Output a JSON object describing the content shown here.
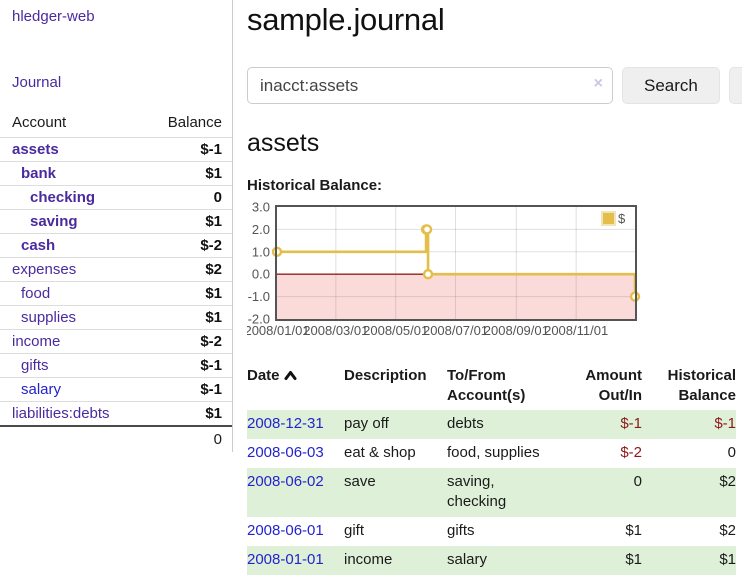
{
  "sidebar": {
    "brand": "hledger-web",
    "nav": {
      "journal": "Journal"
    },
    "accounts_table": {
      "col_account": "Account",
      "col_balance": "Balance",
      "rows": [
        {
          "name": "assets",
          "balance": "$-1",
          "level": 1,
          "bold": true,
          "balance_style": "neg-strong"
        },
        {
          "name": "bank",
          "balance": "$1",
          "level": 2,
          "bold": true,
          "balance_style": "normal"
        },
        {
          "name": "checking",
          "balance": "0",
          "level": 3,
          "bold": true,
          "balance_style": "normal"
        },
        {
          "name": "saving",
          "balance": "$1",
          "level": 3,
          "bold": true,
          "balance_style": "normal"
        },
        {
          "name": "cash",
          "balance": "$-2",
          "level": 2,
          "bold": true,
          "balance_style": "neg-strong"
        },
        {
          "name": "expenses",
          "balance": "$2",
          "level": 1,
          "bold": false,
          "balance_style": "normal"
        },
        {
          "name": "food",
          "balance": "$1",
          "level": 2,
          "bold": false,
          "balance_style": "normal"
        },
        {
          "name": "supplies",
          "balance": "$1",
          "level": 2,
          "bold": false,
          "balance_style": "normal"
        },
        {
          "name": "income",
          "balance": "$-2",
          "level": 1,
          "bold": false,
          "balance_style": "neg-soft"
        },
        {
          "name": "gifts",
          "balance": "$-1",
          "level": 2,
          "bold": false,
          "balance_style": "neg-soft"
        },
        {
          "name": "salary",
          "balance": "$-1",
          "level": 2,
          "bold": false,
          "balance_style": "neg-soft",
          "link_style": "blue"
        },
        {
          "name": "liabilities:debts",
          "balance": "$1",
          "level": 1,
          "bold": false,
          "balance_style": "normal"
        }
      ],
      "total": "0"
    }
  },
  "header": {
    "title": "sample.journal"
  },
  "search": {
    "value": "inacct:assets",
    "clear_icon": "×",
    "button": "Search",
    "help_button": "?"
  },
  "account_page": {
    "heading": "assets",
    "chart_label": "Historical Balance:"
  },
  "chart_data": {
    "type": "line",
    "title": "Historical Balance",
    "legend": [
      {
        "label": "$",
        "color": "#e4be49"
      }
    ],
    "x_range": [
      0,
      365
    ],
    "y_range": [
      -2,
      3
    ],
    "x_ticks": [
      {
        "pos": 0,
        "label": "2008/01/01"
      },
      {
        "pos": 60,
        "label": "2008/03/01"
      },
      {
        "pos": 121,
        "label": "2008/05/01"
      },
      {
        "pos": 182,
        "label": "2008/07/01"
      },
      {
        "pos": 244,
        "label": "2008/09/01"
      },
      {
        "pos": 305,
        "label": "2008/11/01"
      }
    ],
    "y_ticks": [
      {
        "v": 3,
        "label": "3.0"
      },
      {
        "v": 2,
        "label": "2.0"
      },
      {
        "v": 1,
        "label": "1.0"
      },
      {
        "v": 0,
        "label": "0.0"
      },
      {
        "v": -1,
        "label": "-1.0"
      },
      {
        "v": -2,
        "label": "-2.0"
      }
    ],
    "points": [
      {
        "date": "2008-01-01",
        "day": 0,
        "value": 1
      },
      {
        "date": "2008-06-01",
        "day": 152,
        "value": 2
      },
      {
        "date": "2008-06-02",
        "day": 153,
        "value": 2
      },
      {
        "date": "2008-06-03",
        "day": 154,
        "value": 0
      },
      {
        "date": "2008-12-31",
        "day": 365,
        "value": -1
      }
    ],
    "style": {
      "line_color": "#e4be49",
      "marker_fill": "#ffffff",
      "negative_fill": "#fbdada",
      "zero_line_color": "#942222",
      "grid_color": "rgba(110,110,110,0.22)",
      "border_color": "#545454",
      "tick_label_color": "#545454",
      "legend_swatch_border": "#f0e4bd"
    }
  },
  "register_table": {
    "headers": {
      "date": {
        "line1": "Date",
        "line2": ""
      },
      "description": {
        "line1": "Description",
        "line2": ""
      },
      "accounts": {
        "line1": "To/From",
        "line2": "Account(s)"
      },
      "amount": {
        "line1": "Amount",
        "line2": "Out/In"
      },
      "balance": {
        "line1": "Historical",
        "line2": "Balance"
      }
    },
    "sort_icon": "chevron-up",
    "rows": [
      {
        "date": "2008-12-31",
        "description": "pay off",
        "accounts": "debts",
        "amount": "$-1",
        "amount_neg": true,
        "balance": "$-1",
        "balance_neg": true,
        "shaded": true
      },
      {
        "date": "2008-06-03",
        "description": "eat & shop",
        "accounts": "food, supplies",
        "amount": "$-2",
        "amount_neg": true,
        "balance": "0",
        "balance_neg": false,
        "shaded": false
      },
      {
        "date": "2008-06-02",
        "description": "save",
        "accounts": "saving, checking",
        "amount": "0",
        "amount_neg": false,
        "balance": "$2",
        "balance_neg": false,
        "shaded": true
      },
      {
        "date": "2008-06-01",
        "description": "gift",
        "accounts": "gifts",
        "amount": "$1",
        "amount_neg": false,
        "balance": "$2",
        "balance_neg": false,
        "shaded": false
      },
      {
        "date": "2008-01-01",
        "description": "income",
        "accounts": "salary",
        "amount": "$1",
        "amount_neg": false,
        "balance": "$1",
        "balance_neg": false,
        "shaded": true
      }
    ]
  },
  "colors": {
    "link_purple": "#4b2a9e",
    "link_blue": "#2424cc",
    "neg_strong": "#901414",
    "neg_soft": "#c29090",
    "table_neg": "#8b1a1a",
    "row_green": "#dff0d8",
    "chart_gold": "#e4be49",
    "chart_pink": "#fbdada"
  }
}
